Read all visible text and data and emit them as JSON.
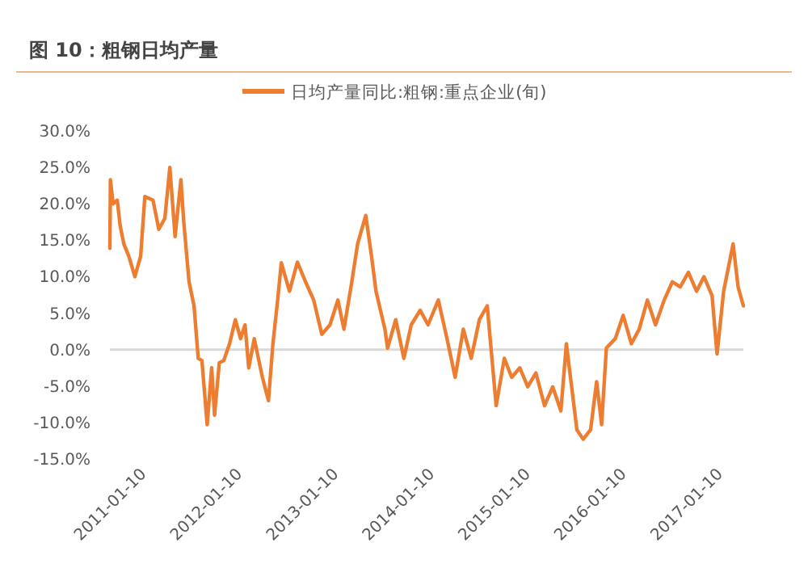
{
  "chart_data": {
    "type": "line",
    "title": "图 10：粗钢日均产量",
    "x": [
      "2011-01-10",
      "2011-01-12",
      "2011-01-22",
      "2011-02-07",
      "2011-02-18",
      "2011-03-04",
      "2011-03-23",
      "2011-04-15",
      "2011-05-07",
      "2011-05-23",
      "2011-06-23",
      "2011-07-15",
      "2011-08-07",
      "2011-08-26",
      "2011-09-15",
      "2011-10-07",
      "2011-10-18",
      "2011-11-07",
      "2011-11-26",
      "2011-12-12",
      "2011-12-26",
      "2012-01-15",
      "2012-02-01",
      "2012-02-12",
      "2012-03-01",
      "2012-03-18",
      "2012-04-09",
      "2012-05-01",
      "2012-05-21",
      "2012-06-07",
      "2012-06-21",
      "2012-07-12",
      "2012-08-12",
      "2012-09-04",
      "2012-09-21",
      "2012-10-09",
      "2012-10-23",
      "2012-11-23",
      "2012-12-23",
      "2013-01-23",
      "2013-02-23",
      "2013-03-26",
      "2013-04-26",
      "2013-05-26",
      "2013-06-18",
      "2013-07-18",
      "2013-08-09",
      "2013-09-09",
      "2013-10-01",
      "2013-10-18",
      "2013-11-21",
      "2013-12-01",
      "2014-01-01",
      "2014-02-01",
      "2014-03-01",
      "2014-04-04",
      "2014-05-04",
      "2014-06-12",
      "2014-07-15",
      "2014-08-15",
      "2014-09-15",
      "2014-10-15",
      "2014-11-15",
      "2014-12-15",
      "2015-01-18",
      "2015-02-18",
      "2015-03-18",
      "2015-04-18",
      "2015-05-18",
      "2015-06-18",
      "2015-07-21",
      "2015-08-21",
      "2015-09-21",
      "2015-10-12",
      "2015-11-01",
      "2015-11-21",
      "2015-12-15",
      "2016-01-12",
      "2016-02-04",
      "2016-02-23",
      "2016-03-12",
      "2016-04-15",
      "2016-05-15",
      "2016-06-15",
      "2016-07-15",
      "2016-08-15",
      "2016-09-15",
      "2016-10-18",
      "2016-11-18",
      "2016-12-18",
      "2017-01-18",
      "2017-02-18",
      "2017-03-18",
      "2017-04-18",
      "2017-05-07",
      "2017-06-01",
      "2017-07-07",
      "2017-07-26",
      "2017-08-15"
    ],
    "series": [
      {
        "name": "日均产量同比:粗钢:重点企业(旬)",
        "color": "#ed7d31",
        "values": [
          13.9,
          23.3,
          20,
          20.5,
          17,
          14.5,
          12.8,
          10,
          12.8,
          21,
          20.5,
          16.5,
          18,
          25,
          15.5,
          23.3,
          17.5,
          9.3,
          6,
          -1.2,
          -1.5,
          -10.3,
          -2.5,
          -9,
          -1.8,
          -1.5,
          0.8,
          4.1,
          1.5,
          3.4,
          -2.5,
          1.5,
          -3.8,
          -7,
          0.8,
          6.8,
          11.9,
          8,
          12,
          9.3,
          6.8,
          2.1,
          3.4,
          6.8,
          2.8,
          9.3,
          14.5,
          18.4,
          12.8,
          8,
          2.8,
          0.2,
          4.1,
          -1.2,
          3.4,
          5.4,
          3.4,
          6.8,
          1.5,
          -3.8,
          2.8,
          -1.2,
          4.1,
          6,
          -7.7,
          -1.2,
          -3.8,
          -2.5,
          -5.1,
          -3.2,
          -7.7,
          -5.1,
          -8.4,
          0.8,
          -5.1,
          -11,
          -12.3,
          -11,
          -4.4,
          -10.3,
          0.2,
          1.5,
          4.7,
          0.8,
          2.8,
          6.8,
          3.4,
          6.8,
          9.3,
          8.6,
          10.6,
          8,
          10,
          7.4,
          -0.6,
          8,
          14.5,
          8.6,
          6
        ]
      }
    ],
    "xlim": [
      "2011-01-10",
      "2017-08-15"
    ],
    "xticks": [
      "2011-01-10",
      "2012-01-10",
      "2013-01-10",
      "2014-01-10",
      "2015-01-10",
      "2016-01-10",
      "2017-01-10"
    ],
    "ylim": [
      -15,
      30
    ],
    "yticks": [
      {
        "value": -15,
        "label": "-15.0%"
      },
      {
        "value": -10,
        "label": "-10.0%"
      },
      {
        "value": -5,
        "label": "-5.0%"
      },
      {
        "value": 0,
        "label": "0.0%"
      },
      {
        "value": 5,
        "label": "5.0%"
      },
      {
        "value": 10,
        "label": "10.0%"
      },
      {
        "value": 15,
        "label": "15.0%"
      },
      {
        "value": 20,
        "label": "20.0%"
      },
      {
        "value": 25,
        "label": "25.0%"
      },
      {
        "value": 30,
        "label": "30.0%"
      }
    ],
    "ref_lines": [
      {
        "axis": "y",
        "value": 0,
        "color": "#d9d9d9"
      }
    ],
    "legend": "top",
    "grid": false,
    "marker": "none",
    "line_style": "solid"
  }
}
